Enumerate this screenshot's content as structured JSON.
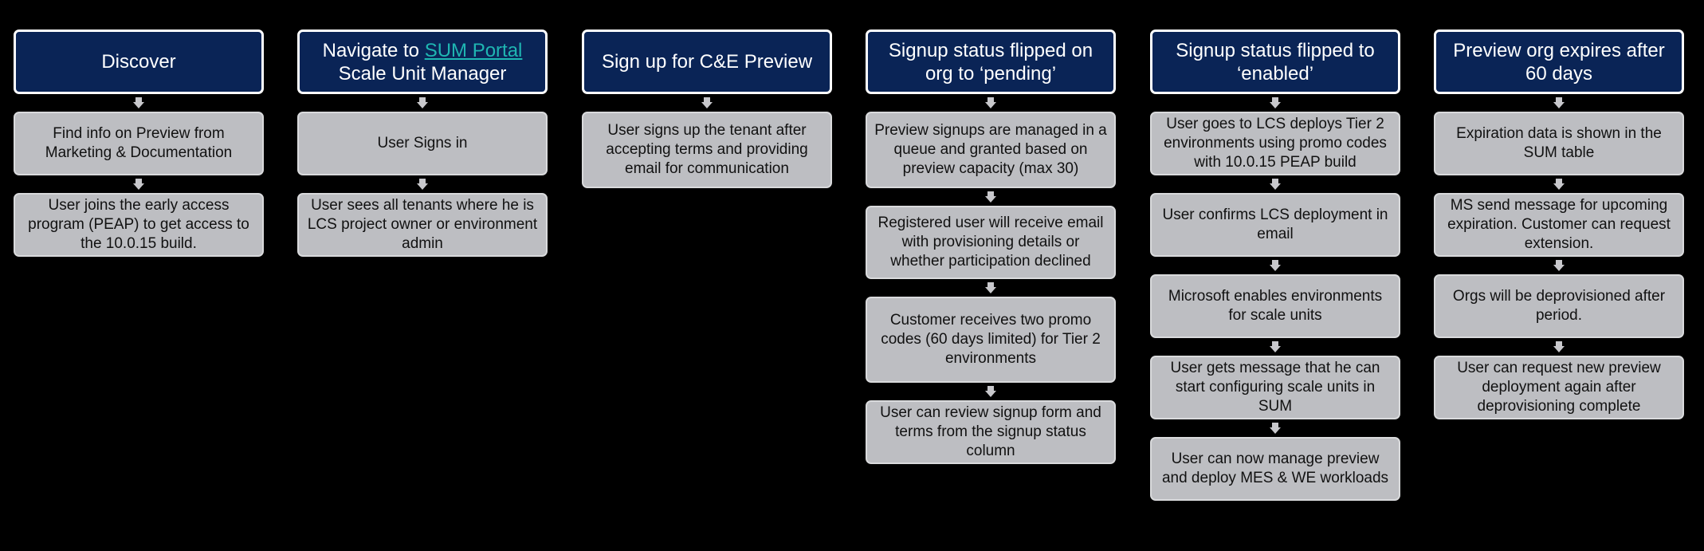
{
  "columns": [
    {
      "header": {
        "text": "Discover"
      },
      "steps": [
        "Find info on Preview from Marketing & Documentation",
        "User joins the early access program (PEAP) to get access to the 10.0.15 build."
      ]
    },
    {
      "header": {
        "prefix": "Navigate to ",
        "link": "SUM Portal",
        "suffix": "Scale Unit Manager"
      },
      "steps": [
        "User Signs in",
        "User sees all tenants where he is LCS project owner or environment admin"
      ]
    },
    {
      "header": {
        "text": "Sign up for C&E Preview"
      },
      "steps": [
        "User signs up the tenant after accepting terms and providing email for communication"
      ]
    },
    {
      "header": {
        "text": "Signup status flipped on org to ‘pending’"
      },
      "steps": [
        "Preview signups are managed in a queue and granted based on preview capacity (max 30)",
        "Registered user will receive email with provisioning details or whether participation declined",
        "Customer receives two promo codes (60 days limited) for Tier 2 environments",
        "User can review signup form  and terms from the signup status column"
      ]
    },
    {
      "header": {
        "text": "Signup status flipped to ‘enabled’"
      },
      "steps": [
        "User goes to LCS deploys Tier 2 environments using promo codes with 10.0.15 PEAP build",
        "User confirms LCS deployment in email",
        "Microsoft enables environments for scale units",
        "User gets message that he can start configuring scale units in SUM",
        "User can now manage preview and deploy MES & WE workloads"
      ]
    },
    {
      "header": {
        "text": "Preview org expires after 60 days"
      },
      "steps": [
        "Expiration data is shown in the SUM table",
        "MS send message for upcoming expiration. Customer can request extension.",
        "Orgs will be deprovisioned after period.",
        "User can request new preview deployment again after deprovisioning complete"
      ]
    }
  ],
  "colors": {
    "background": "#000000",
    "header_fill": "#0a2456",
    "header_border": "#ffffff",
    "step_fill": "#bdbec2",
    "link": "#1fb6b2",
    "arrow": "#c8c8cc"
  }
}
